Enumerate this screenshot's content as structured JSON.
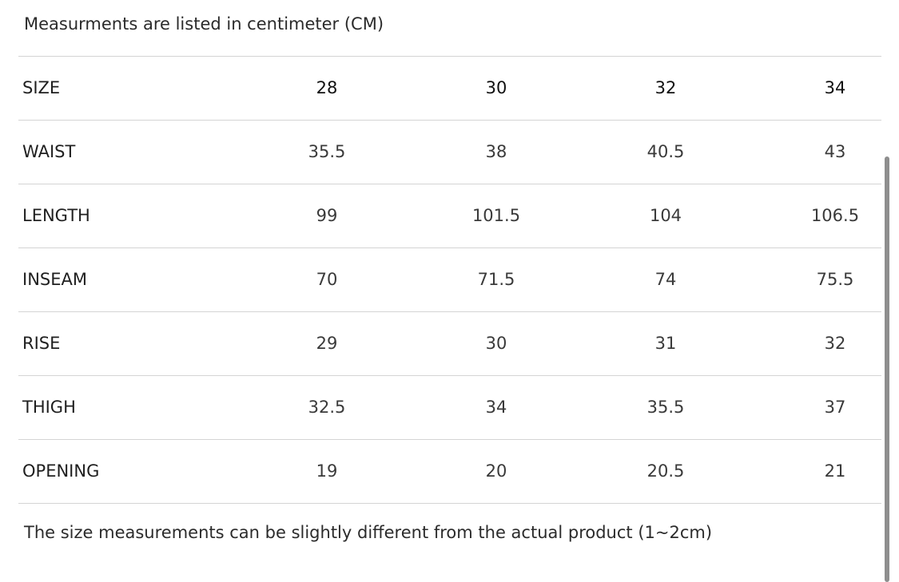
{
  "top_note": "Measurments are listed in centimeter (CM)",
  "table": {
    "header": {
      "label": "SIZE",
      "values": [
        "28",
        "30",
        "32",
        "34"
      ]
    },
    "rows": [
      {
        "label": "WAIST",
        "values": [
          "35.5",
          "38",
          "40.5",
          "43"
        ]
      },
      {
        "label": "LENGTH",
        "values": [
          "99",
          "101.5",
          "104",
          "106.5"
        ]
      },
      {
        "label": "INSEAM",
        "values": [
          "70",
          "71.5",
          "74",
          "75.5"
        ]
      },
      {
        "label": "RISE",
        "values": [
          "29",
          "30",
          "31",
          "32"
        ]
      },
      {
        "label": "THIGH",
        "values": [
          "32.5",
          "34",
          "35.5",
          "37"
        ]
      },
      {
        "label": "OPENING",
        "values": [
          "19",
          "20",
          "20.5",
          "21"
        ]
      }
    ]
  },
  "bottom_note": "The size measurements can be slightly different from the actual product (1~2cm)",
  "colors": {
    "text": "#222222",
    "divider": "#d4d4d4",
    "scrollbar": "#8e8e8e"
  }
}
